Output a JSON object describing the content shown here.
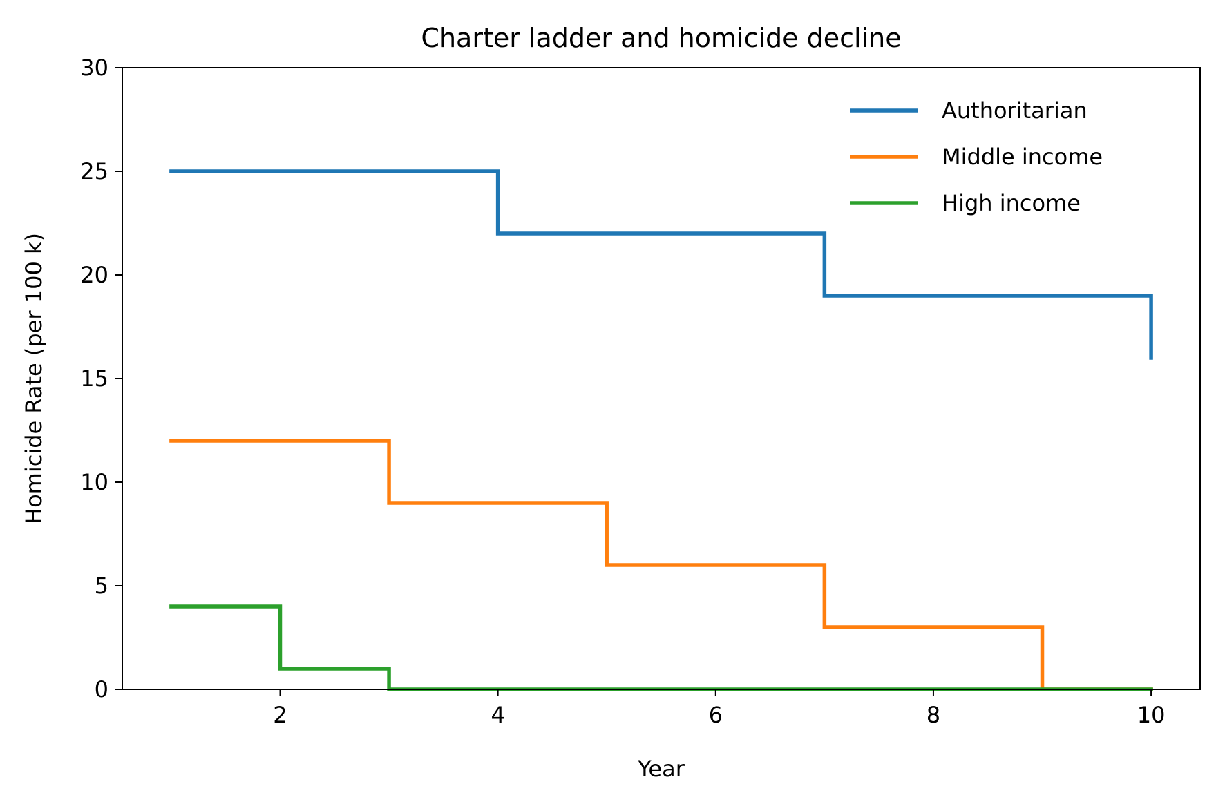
{
  "chart_data": {
    "type": "line",
    "title": "Charter ladder and homicide decline",
    "xlabel": "Year",
    "ylabel": "Homicide Rate (per 100 k)",
    "xlim": [
      0.55,
      10.45
    ],
    "ylim": [
      0,
      30
    ],
    "xticks": [
      2,
      4,
      6,
      8,
      10
    ],
    "yticks": [
      0,
      5,
      10,
      15,
      20,
      25,
      30
    ],
    "x": [
      1,
      2,
      3,
      4,
      5,
      6,
      7,
      8,
      9,
      10
    ],
    "step": "post",
    "grid": false,
    "legend_position": "upper right",
    "series": [
      {
        "name": "Authoritarian",
        "color": "#1f77b4",
        "values": [
          25,
          25,
          25,
          22,
          22,
          22,
          19,
          19,
          19,
          16
        ]
      },
      {
        "name": "Middle income",
        "color": "#ff7f0e",
        "values": [
          12,
          12,
          9,
          9,
          6,
          6,
          3,
          3,
          0,
          0
        ]
      },
      {
        "name": "High income",
        "color": "#2ca02c",
        "values": [
          4,
          1,
          0,
          0,
          0,
          0,
          0,
          0,
          0,
          0
        ]
      }
    ]
  }
}
